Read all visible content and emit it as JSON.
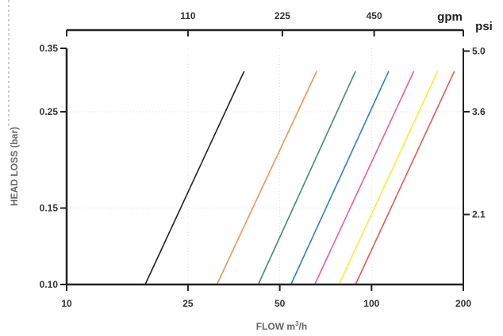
{
  "chart_data": {
    "type": "line",
    "xlabel": "FLOW m",
    "xlabel_sup": "3",
    "xlabel_suffix": "/h",
    "ylabel": "HEAD LOSS (bar)",
    "x_scale": "log",
    "y_scale": "log",
    "xlim": [
      10,
      200
    ],
    "ylim": [
      0.1,
      0.35
    ],
    "x_ticks": [
      {
        "value": 10,
        "label": "10"
      },
      {
        "value": 25,
        "label": "25"
      },
      {
        "value": 50,
        "label": "50"
      },
      {
        "value": 100,
        "label": "100"
      },
      {
        "value": 200,
        "label": "200"
      }
    ],
    "y_ticks": [
      {
        "value": 0.1,
        "label": "0.10"
      },
      {
        "value": 0.15,
        "label": "0.15"
      },
      {
        "value": 0.25,
        "label": "0.25"
      },
      {
        "value": 0.35,
        "label": "0.35"
      }
    ],
    "top_axis": {
      "unit": "gpm",
      "ticks": [
        {
          "value": 25,
          "label": "110"
        },
        {
          "value": 51,
          "label": "225"
        },
        {
          "value": 102,
          "label": "450"
        }
      ]
    },
    "right_axis": {
      "unit": "psi",
      "ticks": [
        {
          "value": 0.145,
          "label": "2.1"
        },
        {
          "value": 0.25,
          "label": "3.6"
        },
        {
          "value": 0.345,
          "label": "5.0"
        }
      ]
    },
    "grid": true,
    "series": [
      {
        "color": "#222222",
        "x": [
          18.1,
          38.2
        ],
        "y": [
          0.1,
          0.31
        ]
      },
      {
        "color": "#f2925a",
        "x": [
          31.1,
          66.1
        ],
        "y": [
          0.1,
          0.31
        ]
      },
      {
        "color": "#4a8a6e",
        "x": [
          42.5,
          88.6
        ],
        "y": [
          0.1,
          0.31
        ]
      },
      {
        "color": "#2f7bd8",
        "x": [
          54.4,
          113.8
        ],
        "y": [
          0.1,
          0.31
        ]
      },
      {
        "color": "#ee5c9a",
        "x": [
          65.1,
          137.6
        ],
        "y": [
          0.1,
          0.31
        ]
      },
      {
        "color": "#f2f230",
        "x": [
          78.2,
          164.7
        ],
        "y": [
          0.1,
          0.31
        ]
      },
      {
        "color": "#e4585c",
        "x": [
          88.6,
          186.9
        ],
        "y": [
          0.1,
          0.31
        ]
      }
    ]
  }
}
